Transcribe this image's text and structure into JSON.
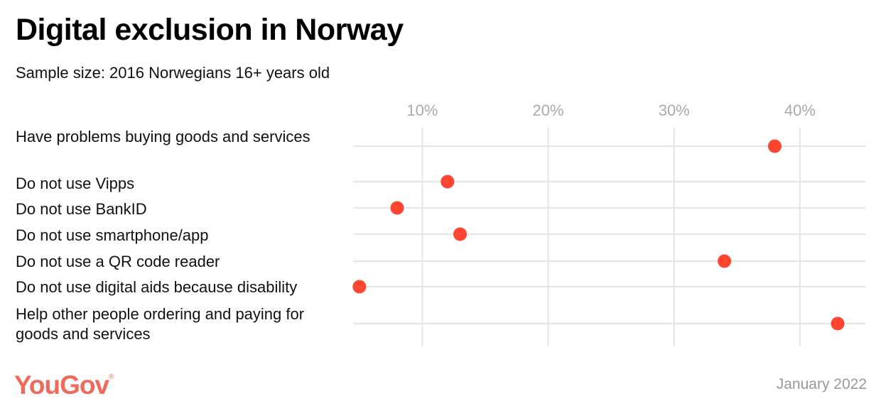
{
  "title": "Digital exclusion in Norway",
  "subtitle": "Sample size: 2016 Norwegians 16+ years old",
  "footer": {
    "logo": "YouGov",
    "date": "January 2022"
  },
  "chart_data": {
    "type": "scatter",
    "title": "Digital exclusion in Norway",
    "subtitle": "Sample size: 2016 Norwegians 16+ years old",
    "categories": [
      "Have problems buying goods and services",
      "Do not use Vipps",
      "Do not use BankID",
      "Do not use smartphone/app",
      "Do not use a QR code reader",
      "Do not use digital aids because disability",
      "Help other people ordering and paying for goods and services"
    ],
    "values": [
      38,
      12,
      8,
      13,
      34,
      5,
      43
    ],
    "unit": "%",
    "xlim": [
      4.5,
      45.2
    ],
    "x_ticks": [
      10,
      20,
      30,
      40
    ],
    "x_tick_labels": [
      "10%",
      "20%",
      "30%",
      "40%"
    ],
    "x_axis_position": "top",
    "grid": true,
    "dot_color": "#ff4530",
    "grid_color": "#e5e5e5"
  }
}
